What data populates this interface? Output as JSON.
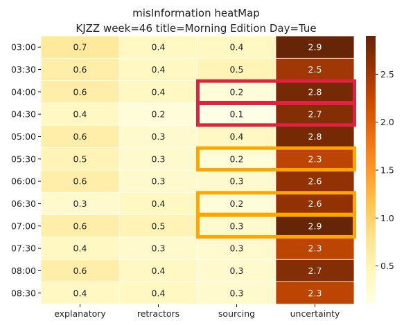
{
  "chart_data": {
    "type": "heatmap",
    "title_lines": [
      "misInformation heatMap",
      "KJZZ week=46 title=Morning Edition Day=Tue"
    ],
    "columns": [
      "explanatory",
      "retractors",
      "sourcing",
      "uncertainty"
    ],
    "rows": [
      "03:00",
      "03:30",
      "04:00",
      "04:30",
      "05:00",
      "05:30",
      "06:00",
      "06:30",
      "07:00",
      "07:30",
      "08:00",
      "08:30"
    ],
    "values": [
      [
        0.7,
        0.4,
        0.4,
        2.9
      ],
      [
        0.6,
        0.4,
        0.5,
        2.5
      ],
      [
        0.6,
        0.4,
        0.2,
        2.8
      ],
      [
        0.4,
        0.2,
        0.1,
        2.7
      ],
      [
        0.6,
        0.3,
        0.4,
        2.8
      ],
      [
        0.5,
        0.3,
        0.2,
        2.3
      ],
      [
        0.6,
        0.3,
        0.3,
        2.6
      ],
      [
        0.3,
        0.4,
        0.2,
        2.6
      ],
      [
        0.6,
        0.5,
        0.3,
        2.9
      ],
      [
        0.4,
        0.3,
        0.3,
        2.3
      ],
      [
        0.6,
        0.4,
        0.3,
        2.7
      ],
      [
        0.4,
        0.4,
        0.3,
        2.3
      ]
    ],
    "colormap": "YlOrBr",
    "vmin": 0.1,
    "vmax": 2.9,
    "colorbar_ticks": [
      0.5,
      1.0,
      1.5,
      2.0,
      2.5
    ],
    "colorbar_tick_labels": [
      "0.5",
      "1.0",
      "1.5",
      "2.0",
      "2.5"
    ],
    "highlight_boxes": [
      {
        "color": "#dc2440",
        "row_start": "04:00",
        "row_end": "04:00",
        "col_start": "sourcing",
        "col_end": "uncertainty"
      },
      {
        "color": "#dc2440",
        "row_start": "04:30",
        "row_end": "04:30",
        "col_start": "sourcing",
        "col_end": "uncertainty"
      },
      {
        "color": "#ffa500",
        "row_start": "05:30",
        "row_end": "05:30",
        "col_start": "sourcing",
        "col_end": "uncertainty"
      },
      {
        "color": "#ffa500",
        "row_start": "06:30",
        "row_end": "06:30",
        "col_start": "sourcing",
        "col_end": "uncertainty"
      },
      {
        "color": "#ffa500",
        "row_start": "07:00",
        "row_end": "07:00",
        "col_start": "sourcing",
        "col_end": "uncertainty"
      }
    ]
  }
}
